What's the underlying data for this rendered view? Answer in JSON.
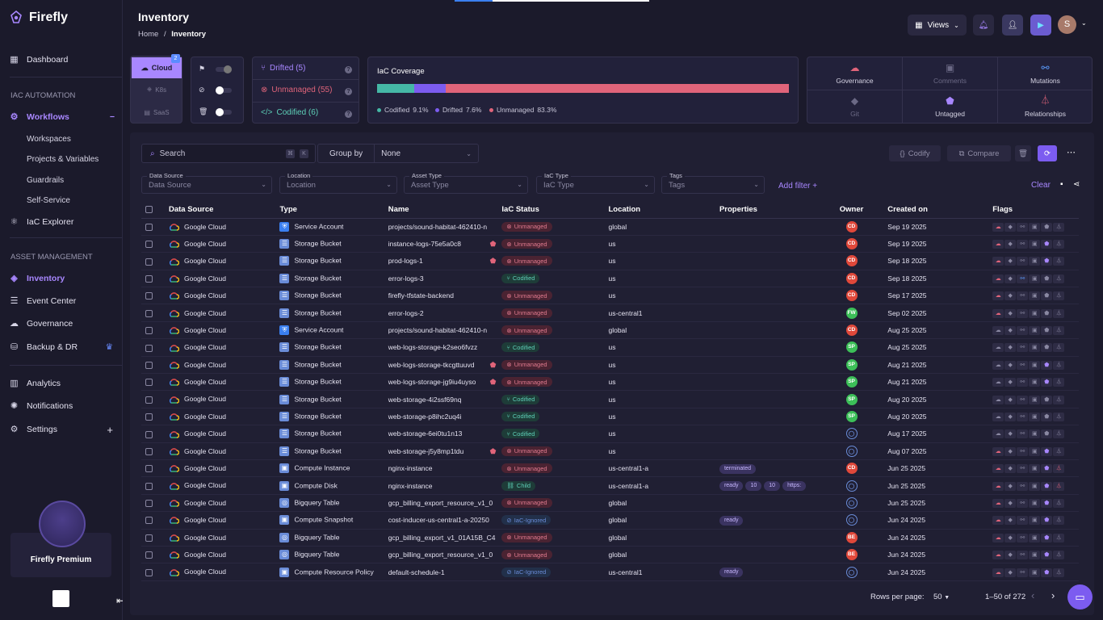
{
  "app": {
    "name": "Firefly",
    "premium_label": "Firefly Premium"
  },
  "sidebar": {
    "dashboard": "Dashboard",
    "iac_section": "IAC AUTOMATION",
    "workflows": "Workflows",
    "workspaces": "Workspaces",
    "projects": "Projects & Variables",
    "guardrails": "Guardrails",
    "self_service": "Self-Service",
    "iac_explorer": "IaC Explorer",
    "asset_section": "ASSET MANAGEMENT",
    "inventory": "Inventory",
    "event_center": "Event Center",
    "governance": "Governance",
    "backup": "Backup & DR",
    "analytics": "Analytics",
    "notifications": "Notifications",
    "settings": "Settings"
  },
  "header": {
    "title": "Inventory",
    "crumb_home": "Home",
    "crumb_sep": "/",
    "crumb_current": "Inventory",
    "views": "Views",
    "avatar": "S"
  },
  "sources": {
    "cloud": "Cloud",
    "cloud_badge": "2",
    "k8s": "K8s",
    "saas": "SaaS"
  },
  "drift": {
    "drifted": "Drifted (5)",
    "unmanaged": "Unmanaged (55)",
    "codified": "Codified (6)"
  },
  "coverage": {
    "title": "IaC Coverage",
    "codified_label": "Codified",
    "codified_pct": "9.1%",
    "codified_val": 9.1,
    "drifted_label": "Drifted",
    "drifted_pct": "7.6%",
    "drifted_val": 7.6,
    "unmanaged_label": "Unmanaged",
    "unmanaged_pct": "83.3%",
    "unmanaged_val": 83.3,
    "colors": {
      "codified": "#45b8a6",
      "drifted": "#7c5cf0",
      "unmanaged": "#e0647a"
    }
  },
  "features": [
    "Governance",
    "Comments",
    "Mutations",
    "Git",
    "Untagged",
    "Relationships"
  ],
  "toolbar": {
    "search_placeholder": "Search",
    "group_by": "Group by",
    "group_value": "None",
    "codify": "Codify",
    "compare": "Compare",
    "add_filter": "Add filter +",
    "clear": "Clear"
  },
  "filters": [
    {
      "label": "Data Source",
      "placeholder": "Data Source"
    },
    {
      "label": "Location",
      "placeholder": "Location"
    },
    {
      "label": "Asset Type",
      "placeholder": "Asset Type"
    },
    {
      "label": "IaC Type",
      "placeholder": "IaC Type"
    },
    {
      "label": "Tags",
      "placeholder": "Tags"
    }
  ],
  "columns": [
    "Data Source",
    "Type",
    "Name",
    "IaC Status",
    "Location",
    "Properties",
    "Owner",
    "Created on",
    "Flags"
  ],
  "rows": [
    {
      "source": "Google Cloud",
      "type": "Service Account",
      "icon": "service-account-icon",
      "name": "projects/sound-habitat-462410-n",
      "tag": false,
      "status": "Unmanaged",
      "location": "global",
      "props": [],
      "owner": "CD",
      "date": "Sep 19 2025"
    },
    {
      "source": "Google Cloud",
      "type": "Storage Bucket",
      "icon": "bucket-icon",
      "name": "instance-logs-75e5a0c8",
      "tag": true,
      "status": "Unmanaged",
      "location": "us",
      "props": [],
      "owner": "CD",
      "date": "Sep 19 2025"
    },
    {
      "source": "Google Cloud",
      "type": "Storage Bucket",
      "icon": "bucket-icon",
      "name": "prod-logs-1",
      "tag": true,
      "status": "Unmanaged",
      "location": "us",
      "props": [],
      "owner": "CD",
      "date": "Sep 18 2025"
    },
    {
      "source": "Google Cloud",
      "type": "Storage Bucket",
      "icon": "bucket-icon",
      "name": "error-logs-3",
      "tag": false,
      "status": "Codified",
      "location": "us",
      "props": [],
      "owner": "CD",
      "date": "Sep 18 2025"
    },
    {
      "source": "Google Cloud",
      "type": "Storage Bucket",
      "icon": "bucket-icon",
      "name": "firefly-tfstate-backend",
      "tag": false,
      "status": "Unmanaged",
      "location": "us",
      "props": [],
      "owner": "CD",
      "date": "Sep 17 2025"
    },
    {
      "source": "Google Cloud",
      "type": "Storage Bucket",
      "icon": "bucket-icon",
      "name": "error-logs-2",
      "tag": false,
      "status": "Unmanaged",
      "location": "us-central1",
      "props": [],
      "owner": "FW",
      "date": "Sep 02 2025"
    },
    {
      "source": "Google Cloud",
      "type": "Service Account",
      "icon": "service-account-icon",
      "name": "projects/sound-habitat-462410-n",
      "tag": false,
      "status": "Unmanaged",
      "location": "global",
      "props": [],
      "owner": "CD",
      "date": "Aug 25 2025"
    },
    {
      "source": "Google Cloud",
      "type": "Storage Bucket",
      "icon": "bucket-icon",
      "name": "web-logs-storage-k2seo6fvzz",
      "tag": false,
      "status": "Codified",
      "location": "us",
      "props": [],
      "owner": "SP",
      "date": "Aug 25 2025"
    },
    {
      "source": "Google Cloud",
      "type": "Storage Bucket",
      "icon": "bucket-icon",
      "name": "web-logs-storage-tkcgttuuvd",
      "tag": true,
      "status": "Unmanaged",
      "location": "us",
      "props": [],
      "owner": "SP",
      "date": "Aug 21 2025"
    },
    {
      "source": "Google Cloud",
      "type": "Storage Bucket",
      "icon": "bucket-icon",
      "name": "web-logs-storage-jg9iu4uyso",
      "tag": true,
      "status": "Unmanaged",
      "location": "us",
      "props": [],
      "owner": "SP",
      "date": "Aug 21 2025"
    },
    {
      "source": "Google Cloud",
      "type": "Storage Bucket",
      "icon": "bucket-icon",
      "name": "web-storage-4i2ssf69nq",
      "tag": false,
      "status": "Codified",
      "location": "us",
      "props": [],
      "owner": "SP",
      "date": "Aug 20 2025"
    },
    {
      "source": "Google Cloud",
      "type": "Storage Bucket",
      "icon": "bucket-icon",
      "name": "web-storage-p8ihc2uq4i",
      "tag": false,
      "status": "Codified",
      "location": "us",
      "props": [],
      "owner": "SP",
      "date": "Aug 20 2025"
    },
    {
      "source": "Google Cloud",
      "type": "Storage Bucket",
      "icon": "bucket-icon",
      "name": "web-storage-6ei0tu1n13",
      "tag": false,
      "status": "Codified",
      "location": "us",
      "props": [],
      "owner": "",
      "date": "Aug 17 2025"
    },
    {
      "source": "Google Cloud",
      "type": "Storage Bucket",
      "icon": "bucket-icon",
      "name": "web-storage-j5y8mp1tdu",
      "tag": true,
      "status": "Unmanaged",
      "location": "us",
      "props": [],
      "owner": "",
      "date": "Aug 07 2025"
    },
    {
      "source": "Google Cloud",
      "type": "Compute Instance",
      "icon": "compute-icon",
      "name": "nginx-instance",
      "tag": false,
      "status": "Unmanaged",
      "location": "us-central1-a",
      "props": [
        "terminated"
      ],
      "owner": "CD",
      "date": "Jun 25 2025"
    },
    {
      "source": "Google Cloud",
      "type": "Compute Disk",
      "icon": "compute-icon",
      "name": "nginx-instance",
      "tag": false,
      "status": "Child",
      "location": "us-central1-a",
      "props": [
        "ready",
        "10",
        "10",
        "https:"
      ],
      "owner": "",
      "date": "Jun 25 2025"
    },
    {
      "source": "Google Cloud",
      "type": "Bigquery Table",
      "icon": "bigquery-icon",
      "name": "gcp_billing_export_resource_v1_0",
      "tag": false,
      "status": "Unmanaged",
      "location": "global",
      "props": [],
      "owner": "",
      "date": "Jun 25 2025"
    },
    {
      "source": "Google Cloud",
      "type": "Compute Snapshot",
      "icon": "compute-icon",
      "name": "cost-inducer-us-central1-a-20250",
      "tag": false,
      "status": "IaC-Ignored",
      "location": "global",
      "props": [
        "ready"
      ],
      "owner": "",
      "date": "Jun 24 2025"
    },
    {
      "source": "Google Cloud",
      "type": "Bigquery Table",
      "icon": "bigquery-icon",
      "name": "gcp_billing_export_v1_01A15B_C4",
      "tag": false,
      "status": "Unmanaged",
      "location": "global",
      "props": [],
      "owner": "BE",
      "date": "Jun 24 2025"
    },
    {
      "source": "Google Cloud",
      "type": "Bigquery Table",
      "icon": "bigquery-icon",
      "name": "gcp_billing_export_resource_v1_0",
      "tag": false,
      "status": "Unmanaged",
      "location": "global",
      "props": [],
      "owner": "BE",
      "date": "Jun 24 2025"
    },
    {
      "source": "Google Cloud",
      "type": "Compute Resource Policy",
      "icon": "compute-icon",
      "name": "default-schedule-1",
      "tag": false,
      "status": "IaC-Ignored",
      "location": "us-central1",
      "props": [
        "ready"
      ],
      "owner": "",
      "date": "Jun 24 2025"
    }
  ],
  "pager": {
    "rows_label": "Rows per page:",
    "rows_value": "50",
    "range": "1–50 of 272"
  }
}
